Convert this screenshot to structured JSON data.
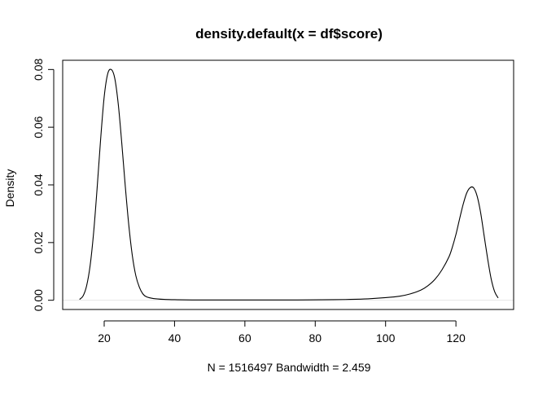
{
  "chart_data": {
    "type": "line",
    "title": "density.default(x = df$score)",
    "xlabel": "N = 1516497   Bandwidth = 2.459",
    "ylabel": "Density",
    "xlim": [
      8.2,
      136.4
    ],
    "ylim": [
      -0.0032,
      0.0832
    ],
    "x_ticks": [
      "20",
      "40",
      "60",
      "80",
      "100",
      "120"
    ],
    "y_ticks": [
      "0.00",
      "0.02",
      "0.04",
      "0.06",
      "0.08"
    ],
    "x_tick_values": [
      20,
      40,
      60,
      80,
      100,
      120
    ],
    "y_tick_values": [
      0.0,
      0.02,
      0.04,
      0.06,
      0.08
    ],
    "zero_line": true,
    "box": true,
    "grid": false,
    "line_color": "#000000",
    "zero_line_color": "#e6e6e6",
    "series": [
      {
        "points": [
          [
            13.0,
            0.0003
          ],
          [
            14.0,
            0.0015
          ],
          [
            15.0,
            0.005
          ],
          [
            16.0,
            0.012
          ],
          [
            17.0,
            0.0235
          ],
          [
            18.0,
            0.039
          ],
          [
            19.0,
            0.056
          ],
          [
            20.0,
            0.0705
          ],
          [
            21.0,
            0.0785
          ],
          [
            22.0,
            0.08
          ],
          [
            23.0,
            0.077
          ],
          [
            24.0,
            0.068
          ],
          [
            25.0,
            0.0545
          ],
          [
            26.0,
            0.0395
          ],
          [
            27.0,
            0.026
          ],
          [
            28.0,
            0.0155
          ],
          [
            29.0,
            0.0085
          ],
          [
            30.0,
            0.0045
          ],
          [
            31.0,
            0.0022
          ],
          [
            32.0,
            0.0012
          ],
          [
            34.0,
            0.0006
          ],
          [
            37.0,
            0.0003
          ],
          [
            40.0,
            0.0002
          ],
          [
            45.0,
            0.0001
          ],
          [
            55.0,
            0.0001
          ],
          [
            65.0,
            0.0001
          ],
          [
            75.0,
            0.0001
          ],
          [
            85.0,
            0.0002
          ],
          [
            90.0,
            0.0003
          ],
          [
            95.0,
            0.0005
          ],
          [
            100.0,
            0.0009
          ],
          [
            104.0,
            0.0014
          ],
          [
            107.0,
            0.0022
          ],
          [
            110.0,
            0.0035
          ],
          [
            112.0,
            0.005
          ],
          [
            114.0,
            0.0072
          ],
          [
            116.0,
            0.0105
          ],
          [
            118.0,
            0.015
          ],
          [
            119.0,
            0.0185
          ],
          [
            120.0,
            0.0228
          ],
          [
            121.0,
            0.028
          ],
          [
            122.0,
            0.033
          ],
          [
            123.0,
            0.037
          ],
          [
            124.0,
            0.039
          ],
          [
            125.0,
            0.039
          ],
          [
            126.0,
            0.0362
          ],
          [
            127.0,
            0.0305
          ],
          [
            128.0,
            0.0225
          ],
          [
            129.0,
            0.0145
          ],
          [
            130.0,
            0.0075
          ],
          [
            131.0,
            0.003
          ],
          [
            132.0,
            0.0008
          ]
        ]
      }
    ]
  }
}
